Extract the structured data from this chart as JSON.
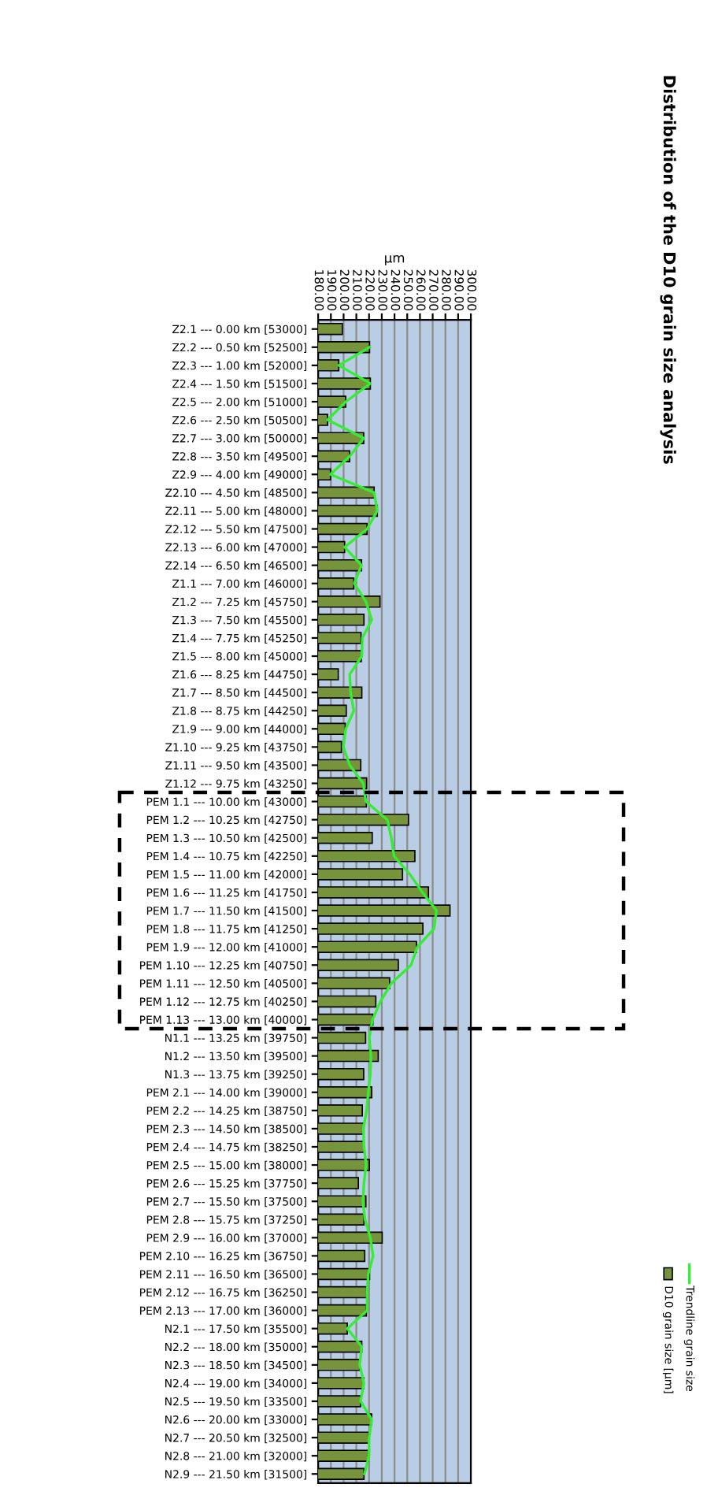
{
  "chart_data": {
    "type": "bar",
    "orientation": "horizontal",
    "title": "Distribution of the D10 grain size analysis",
    "xlabel": "µm",
    "categories": [
      "Z2.1 --- 0.00 km [53000]",
      "Z2.2 --- 0.50 km [52500]",
      "Z2.3 --- 1.00 km [52000]",
      "Z2.4 --- 1.50 km [51500]",
      "Z2.5 --- 2.00 km [51000]",
      "Z2.6 --- 2.50 km [50500]",
      "Z2.7 --- 3.00 km [50000]",
      "Z2.8 --- 3.50 km [49500]",
      "Z2.9 --- 4.00 km [49000]",
      "Z2.10 --- 4.50 km [48500]",
      "Z2.11 --- 5.00 km [48000]",
      "Z2.12 --- 5.50 km [47500]",
      "Z2.13 --- 6.00 km [47000]",
      "Z2.14 --- 6.50 km [46500]",
      "Z1.1 --- 7.00 km [46000]",
      "Z1.2 --- 7.25 km [45750]",
      "Z1.3 --- 7.50 km [45500]",
      "Z1.4 --- 7.75 km [45250]",
      "Z1.5 --- 8.00 km [45000]",
      "Z1.6 --- 8.25 km [44750]",
      "Z1.7 --- 8.50 km [44500]",
      "Z1.8 --- 8.75 km [44250]",
      "Z1.9 --- 9.00 km [44000]",
      "Z1.10 --- 9.25 km [43750]",
      "Z1.11 --- 9.50 km [43500]",
      "Z1.12 --- 9.75 km [43250]",
      "PEM 1.1 --- 10.00 km [43000]",
      "PEM 1.2 --- 10.25 km [42750]",
      "PEM 1.3 --- 10.50 km [42500]",
      "PEM 1.4 --- 10.75 km [42250]",
      "PEM 1.5 --- 11.00 km [42000]",
      "PEM 1.6 --- 11.25 km [41750]",
      "PEM 1.7 --- 11.50 km [41500]",
      "PEM 1.8 --- 11.75 km [41250]",
      "PEM 1.9 --- 12.00 km [41000]",
      "PEM 1.10 --- 12.25 km [40750]",
      "PEM 1.11 --- 12.50 km [40500]",
      "PEM 1.12 --- 12.75 km [40250]",
      "PEM 1.13 --- 13.00 km [40000]",
      "N1.1 --- 13.25 km [39750]",
      "N1.2 --- 13.50 km [39500]",
      "N1.3 --- 13.75 km [39250]",
      "PEM 2.1 --- 14.00 km [39000]",
      "PEM 2.2 --- 14.25 km [38750]",
      "PEM 2.3 --- 14.50 km [38500]",
      "PEM 2.4 --- 14.75 km [38250]",
      "PEM 2.5 --- 15.00 km [38000]",
      "PEM 2.6 --- 15.25 km [37750]",
      "PEM 2.7 --- 15.50 km [37500]",
      "PEM 2.8 --- 15.75 km [37250]",
      "PEM 2.9 --- 16.00 km [37000]",
      "PEM 2.10 --- 16.25 km [36750]",
      "PEM 2.11 --- 16.50 km [36500]",
      "PEM 2.12 --- 16.75 km [36250]",
      "PEM 2.13 --- 17.00 km [36000]",
      "N2.1 --- 17.50 km [35500]",
      "N2.2 --- 18.00 km [35000]",
      "N2.3 --- 18.50 km [34500]",
      "N2.4 --- 19.00 km [34000]",
      "N2.5 --- 19.50 km [33500]",
      "N2.6 --- 20.00 km [33000]",
      "N2.7 --- 20.50 km [32500]",
      "N2.8 --- 21.00 km [32000]",
      "N2.9 --- 21.50 km [31500]"
    ],
    "series": [
      {
        "name": "D10 grain size [µm]",
        "color": "#77933c",
        "values": [
          199,
          220.4,
          196.2,
          221,
          201.7,
          187.4,
          215.8,
          204.8,
          189.7,
          224,
          226.5,
          218.5,
          200.8,
          214.1,
          208,
          228.6,
          216,
          213.7,
          213.9,
          195.8,
          214.3,
          202.1,
          201.3,
          198.3,
          213.5,
          218.1,
          217.9,
          251,
          222.5,
          256,
          246.3,
          266.7,
          283.6,
          262.3,
          257.3,
          243,
          236.2,
          225.3,
          223,
          217.3,
          227.2,
          215.8,
          222.1,
          214.7,
          215.8,
          215.8,
          220.2,
          211.6,
          217.5,
          216,
          230.3,
          216.6,
          220.4,
          218.1,
          217.9,
          202.9,
          214.3,
          212.6,
          215.8,
          213.3,
          222.1,
          219.8,
          219.6,
          216
        ]
      },
      {
        "name": "Trendline grain size",
        "type": "line",
        "color": "#33ee33",
        "values": [
          null,
          220.4,
          196.2,
          221,
          201.7,
          187.4,
          215.8,
          204.8,
          189.7,
          224,
          226.5,
          218.5,
          200.8,
          214.1,
          208.4,
          217.5,
          222.1,
          214.7,
          214.3,
          204.8,
          205.5,
          208,
          201.7,
          199.8,
          204.8,
          215.4,
          217.5,
          234.3,
          237.5,
          239.6,
          252,
          262,
          273,
          271,
          258,
          253,
          237.5,
          229,
          222.7,
          220.2,
          221.5,
          221,
          219.4,
          218.1,
          215.6,
          216,
          217.7,
          216,
          215.2,
          216.8,
          221,
          223.2,
          219.4,
          218.5,
          218.5,
          202.9,
          214.3,
          212.6,
          216,
          213.3,
          222.1,
          220,
          220,
          216.4
        ]
      }
    ],
    "xlim": [
      180,
      300
    ],
    "xticks": [
      {
        "value": 180,
        "label": "180.00"
      },
      {
        "value": 190,
        "label": "190.00"
      },
      {
        "value": 200,
        "label": "200.00"
      },
      {
        "value": 210,
        "label": "210.00"
      },
      {
        "value": 220,
        "label": "220.00"
      },
      {
        "value": 230,
        "label": "230.00"
      },
      {
        "value": 240,
        "label": "240.00"
      },
      {
        "value": 250,
        "label": "250.00"
      },
      {
        "value": 260,
        "label": "260.00"
      },
      {
        "value": 270,
        "label": "270.00"
      },
      {
        "value": 280,
        "label": "280.00"
      },
      {
        "value": 290,
        "label": "290.00"
      },
      {
        "value": 300,
        "label": "300.00"
      }
    ],
    "grid": "x",
    "legend": "bottom right"
  }
}
